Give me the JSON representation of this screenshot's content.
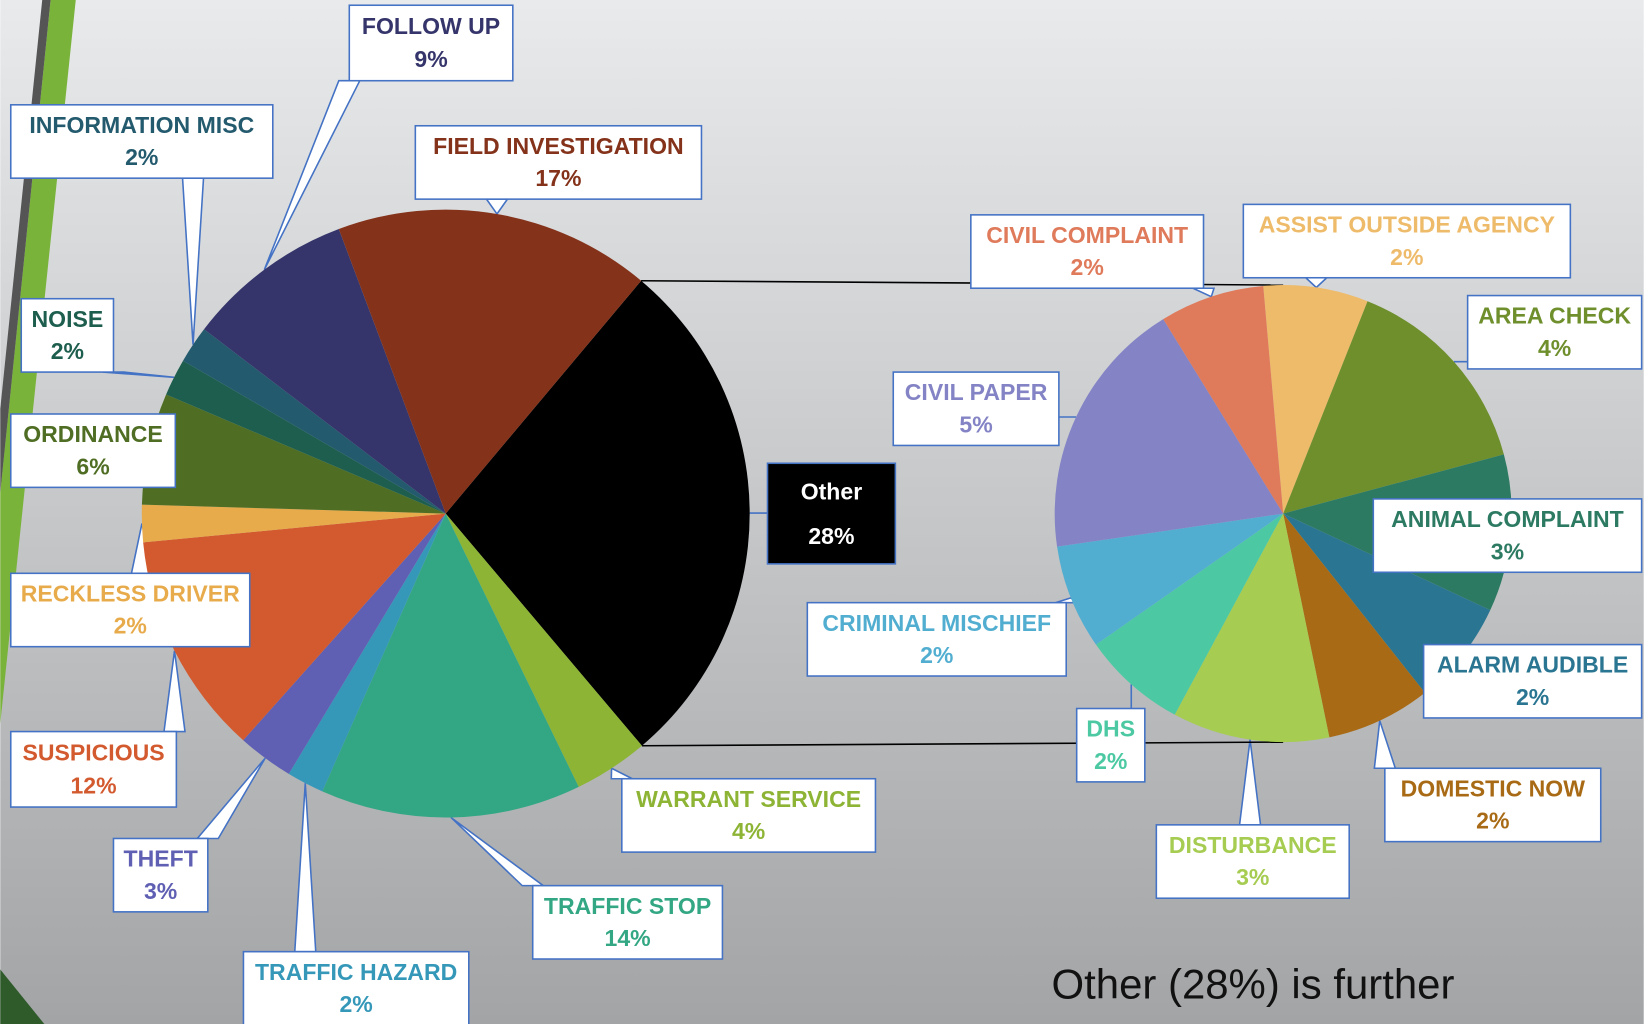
{
  "chart_data": [
    {
      "type": "pie",
      "categories": [
        "Other",
        "WARRANT SERVICE",
        "TRAFFIC STOP",
        "TRAFFIC HAZARD",
        "THEFT",
        "SUSPICIOUS",
        "RECKLESS DRIVER",
        "ORDINANCE",
        "NOISE",
        "INFORMATION MISC",
        "FOLLOW UP",
        "FIELD INVESTIGATION"
      ],
      "values": [
        28,
        4,
        14,
        2,
        3,
        12,
        2,
        6,
        2,
        2,
        9,
        17
      ],
      "value_labels": [
        "28%",
        "4%",
        "14%",
        "2%",
        "3%",
        "12%",
        "2%",
        "6%",
        "2%",
        "2%",
        "9%",
        "17%"
      ],
      "colors": [
        "#000000",
        "#8db435",
        "#33a783",
        "#3598b9",
        "#5f5fb3",
        "#d35a2f",
        "#e8ab4c",
        "#4f6e24",
        "#1e5e4e",
        "#235a6e",
        "#35356b",
        "#84321a"
      ]
    },
    {
      "type": "pie",
      "categories": [
        "ASSIST OUTSIDE AGENCY",
        "AREA CHECK",
        "ANIMAL COMPLAINT",
        "ALARM AUDIBLE",
        "DOMESTIC NOW",
        "DISTURBANCE",
        "DHS",
        "CRIMINAL MISCHIEF",
        "CIVIL PAPER",
        "CIVIL COMPLAINT"
      ],
      "values": [
        2,
        4,
        3,
        2,
        2,
        3,
        2,
        2,
        5,
        2
      ],
      "value_labels": [
        "2%",
        "4%",
        "3%",
        "2%",
        "2%",
        "3%",
        "2%",
        "2%",
        "5%",
        "2%"
      ],
      "colors": [
        "#eebb6a",
        "#6e8f2c",
        "#2d7a63",
        "#2a7591",
        "#a86a14",
        "#a6cc52",
        "#4cc9a2",
        "#52aed0",
        "#8383c5",
        "#df7a5b"
      ]
    }
  ],
  "note": "Other (28%) is further"
}
